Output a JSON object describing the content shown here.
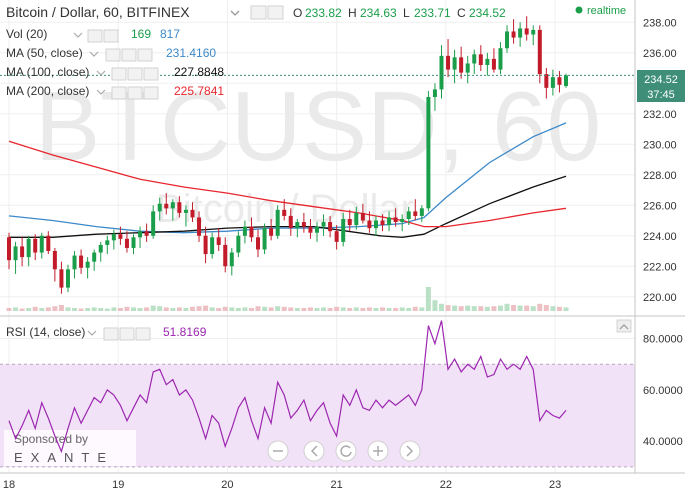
{
  "header": {
    "title": "Bitcoin / Dollar, 60, BITFINEX",
    "o_label": "O",
    "o_value": "233.82",
    "h_label": "H",
    "h_value": "234.63",
    "l_label": "L",
    "l_value": "233.71",
    "c_label": "C",
    "c_value": "234.52",
    "realtime": "realtime"
  },
  "watermark": {
    "symbol": "BTCUSD, 60",
    "name": "Bitcoin / Dollar"
  },
  "indicators": {
    "vol": {
      "label": "Vol (20)",
      "value1": "169",
      "value2": "817"
    },
    "ma50": {
      "label": "MA (50, close)",
      "value": "231.4160"
    },
    "ma100": {
      "label": "MA (100, close)",
      "value": "227.8848"
    },
    "ma200": {
      "label": "MA (200, close)",
      "value": "225.7841"
    },
    "rsi": {
      "label": "RSI (14, close)",
      "value": "51.8169"
    }
  },
  "price_axis": {
    "ticks": [
      "238.00",
      "236.00",
      "234.00",
      "232.00",
      "230.00",
      "228.00",
      "226.00",
      "224.00",
      "222.00",
      "220.00"
    ],
    "current_price": "234.52",
    "countdown": "37:45"
  },
  "rsi_axis": {
    "ticks": [
      "80.0000",
      "60.0000",
      "40.0000"
    ]
  },
  "time_axis": {
    "ticks": [
      "18",
      "19",
      "20",
      "21",
      "22",
      "23"
    ]
  },
  "sponsor": {
    "line1": "Sponsored by",
    "line2": "EXANTE"
  },
  "colors": {
    "up": "#1a9e4a",
    "down": "#c21b2a",
    "ma50": "#3d89c9",
    "ma100": "#111111",
    "ma200": "#e8262d",
    "rsi": "#9c27b0",
    "rsi_band": "#f2e2f7",
    "price_label": "#3f8f78",
    "vol_bar": "#b5d4ea"
  },
  "chart_data": [
    {
      "type": "candlestick",
      "title": "Bitcoin / Dollar, 60, BITFINEX",
      "x_range": [
        "17.95",
        "23.85"
      ],
      "ylim": [
        219.0,
        239.2
      ],
      "candles": [
        [
          18.0,
          223.9,
          224.2,
          221.8,
          222.4
        ],
        [
          18.06,
          222.4,
          223.6,
          221.5,
          223.3
        ],
        [
          18.12,
          223.3,
          223.9,
          222.0,
          222.6
        ],
        [
          18.18,
          222.6,
          224.0,
          222.0,
          223.8
        ],
        [
          18.24,
          223.8,
          224.1,
          222.4,
          222.9
        ],
        [
          18.3,
          222.9,
          224.2,
          222.5,
          224.0
        ],
        [
          18.36,
          224.0,
          224.3,
          222.8,
          223.0
        ],
        [
          18.42,
          223.0,
          223.2,
          221.0,
          221.8
        ],
        [
          18.48,
          221.8,
          222.3,
          220.2,
          220.6
        ],
        [
          18.54,
          220.6,
          222.1,
          220.3,
          221.8
        ],
        [
          18.6,
          221.8,
          223.0,
          221.2,
          222.7
        ],
        [
          18.66,
          222.7,
          223.1,
          221.5,
          221.9
        ],
        [
          18.72,
          221.9,
          222.6,
          221.2,
          222.3
        ],
        [
          18.78,
          222.3,
          223.1,
          221.7,
          222.9
        ],
        [
          18.84,
          222.9,
          223.6,
          222.3,
          223.4
        ],
        [
          18.9,
          223.4,
          224.0,
          222.8,
          223.7
        ],
        [
          18.96,
          223.7,
          224.4,
          223.1,
          224.1
        ],
        [
          19.02,
          224.1,
          224.6,
          223.4,
          223.8
        ],
        [
          19.08,
          223.8,
          224.3,
          222.9,
          223.2
        ],
        [
          19.14,
          223.2,
          224.1,
          222.8,
          223.9
        ],
        [
          19.2,
          223.9,
          224.6,
          223.2,
          224.3
        ],
        [
          19.26,
          224.3,
          224.8,
          223.6,
          224.0
        ],
        [
          19.32,
          224.0,
          226.0,
          223.8,
          225.6
        ],
        [
          19.38,
          225.6,
          226.5,
          225.0,
          226.1
        ],
        [
          19.44,
          226.1,
          226.8,
          225.4,
          225.8
        ],
        [
          19.5,
          225.8,
          226.4,
          225.0,
          226.2
        ],
        [
          19.56,
          226.2,
          226.6,
          225.2,
          225.5
        ],
        [
          19.62,
          225.5,
          226.0,
          224.6,
          225.7
        ],
        [
          19.68,
          225.7,
          226.2,
          224.9,
          225.2
        ],
        [
          19.74,
          225.2,
          225.6,
          223.6,
          224.0
        ],
        [
          19.8,
          224.0,
          224.6,
          222.2,
          222.8
        ],
        [
          19.86,
          222.8,
          224.2,
          222.5,
          223.9
        ],
        [
          19.92,
          223.9,
          224.5,
          223.0,
          223.4
        ],
        [
          19.98,
          223.4,
          223.9,
          221.6,
          222.0
        ],
        [
          20.04,
          222.0,
          223.2,
          221.4,
          222.9
        ],
        [
          20.1,
          222.9,
          224.3,
          222.6,
          224.0
        ],
        [
          20.16,
          224.0,
          225.0,
          223.5,
          224.6
        ],
        [
          20.22,
          224.6,
          225.2,
          223.6,
          223.9
        ],
        [
          20.28,
          223.9,
          224.4,
          222.6,
          223.1
        ],
        [
          20.34,
          223.1,
          224.8,
          222.8,
          224.5
        ],
        [
          20.4,
          224.5,
          225.1,
          223.7,
          224.0
        ],
        [
          20.46,
          224.0,
          226.0,
          223.8,
          225.7
        ],
        [
          20.52,
          225.7,
          226.4,
          225.0,
          225.3
        ],
        [
          20.58,
          225.3,
          225.8,
          224.0,
          224.5
        ],
        [
          20.64,
          224.5,
          225.1,
          223.9,
          224.9
        ],
        [
          20.7,
          224.9,
          225.5,
          224.2,
          224.6
        ],
        [
          20.76,
          224.6,
          225.1,
          223.8,
          224.2
        ],
        [
          20.82,
          224.2,
          224.9,
          223.6,
          224.6
        ],
        [
          20.88,
          224.6,
          225.4,
          224.0,
          224.9
        ],
        [
          20.94,
          224.9,
          225.3,
          223.9,
          224.3
        ],
        [
          21.0,
          224.3,
          224.7,
          223.1,
          223.6
        ],
        [
          21.06,
          223.6,
          225.5,
          223.3,
          225.1
        ],
        [
          21.12,
          225.1,
          225.7,
          224.3,
          224.7
        ],
        [
          21.18,
          224.7,
          225.9,
          224.4,
          225.5
        ],
        [
          21.24,
          225.5,
          226.1,
          224.8,
          225.0
        ],
        [
          21.3,
          225.0,
          225.6,
          224.2,
          224.5
        ],
        [
          21.36,
          224.5,
          225.3,
          224.0,
          225.0
        ],
        [
          21.42,
          225.0,
          225.4,
          224.3,
          224.7
        ],
        [
          21.48,
          224.7,
          225.6,
          224.3,
          225.2
        ],
        [
          21.54,
          225.2,
          225.8,
          224.6,
          224.9
        ],
        [
          21.6,
          224.9,
          225.4,
          224.3,
          225.1
        ],
        [
          21.66,
          225.1,
          225.9,
          224.7,
          225.6
        ],
        [
          21.72,
          225.6,
          226.4,
          225.0,
          225.3
        ],
        [
          21.78,
          225.3,
          226.0,
          224.9,
          225.8
        ],
        [
          21.84,
          225.8,
          233.5,
          225.6,
          233.1
        ],
        [
          21.9,
          233.1,
          234.0,
          232.2,
          233.6
        ],
        [
          21.96,
          233.6,
          236.5,
          233.0,
          235.8
        ],
        [
          22.02,
          235.8,
          236.9,
          234.4,
          234.9
        ],
        [
          22.08,
          234.9,
          236.2,
          234.0,
          235.7
        ],
        [
          22.14,
          235.7,
          236.4,
          234.3,
          234.7
        ],
        [
          22.2,
          234.7,
          235.8,
          234.0,
          235.3
        ],
        [
          22.26,
          235.3,
          236.2,
          234.6,
          235.9
        ],
        [
          22.32,
          235.9,
          236.5,
          234.8,
          235.2
        ],
        [
          22.38,
          235.2,
          236.0,
          234.5,
          235.6
        ],
        [
          22.44,
          235.6,
          236.3,
          234.7,
          234.9
        ],
        [
          22.5,
          234.9,
          236.7,
          234.6,
          236.3
        ],
        [
          22.56,
          236.3,
          237.8,
          236.0,
          237.4
        ],
        [
          22.62,
          237.4,
          238.2,
          236.6,
          237.0
        ],
        [
          22.68,
          237.0,
          238.0,
          236.4,
          237.6
        ],
        [
          22.74,
          237.6,
          238.4,
          236.8,
          237.2
        ],
        [
          22.8,
          237.2,
          237.8,
          236.5,
          237.5
        ],
        [
          22.86,
          237.5,
          237.8,
          234.0,
          234.6
        ],
        [
          22.92,
          234.6,
          235.0,
          233.0,
          233.7
        ],
        [
          22.98,
          233.7,
          234.9,
          233.2,
          234.4
        ],
        [
          23.04,
          234.4,
          234.8,
          233.4,
          233.9
        ],
        [
          23.1,
          233.82,
          234.63,
          233.71,
          234.52
        ]
      ],
      "volume": [
        5,
        6,
        4,
        5,
        7,
        5,
        6,
        8,
        10,
        6,
        5,
        4,
        5,
        6,
        5,
        4,
        6,
        5,
        7,
        6,
        5,
        6,
        9,
        8,
        6,
        5,
        6,
        5,
        7,
        8,
        9,
        6,
        5,
        7,
        6,
        5,
        6,
        5,
        8,
        7,
        6,
        8,
        7,
        6,
        5,
        5,
        6,
        5,
        6,
        5,
        7,
        6,
        5,
        6,
        5,
        6,
        5,
        6,
        5,
        5,
        6,
        5,
        7,
        6,
        40,
        18,
        12,
        10,
        9,
        8,
        9,
        8,
        8,
        7,
        8,
        9,
        12,
        10,
        9,
        9,
        8,
        12,
        10,
        8,
        7,
        6
      ],
      "ma_series": [
        {
          "name": "MA (50, close)",
          "x": [
            18.0,
            18.4,
            18.8,
            19.2,
            19.6,
            20.0,
            20.4,
            20.8,
            21.2,
            21.6,
            21.8,
            22.0,
            22.4,
            22.8,
            23.1
          ],
          "values": [
            225.3,
            225.0,
            224.6,
            224.3,
            224.2,
            224.3,
            224.5,
            224.5,
            224.6,
            224.8,
            225.2,
            226.5,
            228.8,
            230.5,
            231.4
          ]
        },
        {
          "name": "MA (100, close)",
          "x": [
            18.0,
            18.4,
            18.8,
            19.2,
            19.6,
            20.0,
            20.4,
            20.8,
            21.0,
            21.4,
            21.6,
            21.8,
            22.0,
            22.4,
            22.8,
            23.1
          ],
          "values": [
            223.9,
            223.9,
            224.1,
            224.2,
            224.3,
            224.5,
            224.6,
            224.6,
            224.4,
            224.0,
            223.9,
            224.1,
            224.8,
            226.1,
            227.2,
            227.9
          ]
        },
        {
          "name": "MA (200, close)",
          "x": [
            18.0,
            18.4,
            18.8,
            19.2,
            19.6,
            20.0,
            20.4,
            20.8,
            21.2,
            21.6,
            21.8,
            22.0,
            22.4,
            22.8,
            23.1
          ],
          "values": [
            230.2,
            229.3,
            228.5,
            227.7,
            227.2,
            226.8,
            226.3,
            225.9,
            225.5,
            225.0,
            224.6,
            224.6,
            225.0,
            225.5,
            225.8
          ]
        }
      ]
    },
    {
      "type": "line",
      "title": "RSI (14, close)",
      "ylim": [
        28.0,
        88.0
      ],
      "band": [
        30,
        70
      ],
      "series": [
        {
          "name": "RSI (14, close)",
          "x": [
            18.0,
            18.06,
            18.12,
            18.18,
            18.24,
            18.3,
            18.36,
            18.42,
            18.48,
            18.54,
            18.6,
            18.66,
            18.72,
            18.78,
            18.84,
            18.9,
            18.96,
            19.02,
            19.08,
            19.14,
            19.2,
            19.26,
            19.32,
            19.38,
            19.44,
            19.5,
            19.56,
            19.62,
            19.68,
            19.74,
            19.8,
            19.86,
            19.92,
            19.98,
            20.04,
            20.1,
            20.16,
            20.22,
            20.28,
            20.34,
            20.4,
            20.46,
            20.52,
            20.58,
            20.64,
            20.7,
            20.76,
            20.82,
            20.88,
            20.94,
            21.0,
            21.06,
            21.12,
            21.18,
            21.24,
            21.3,
            21.36,
            21.42,
            21.48,
            21.54,
            21.6,
            21.66,
            21.72,
            21.78,
            21.84,
            21.9,
            21.96,
            22.02,
            22.08,
            22.14,
            22.2,
            22.26,
            22.32,
            22.38,
            22.44,
            22.5,
            22.56,
            22.62,
            22.68,
            22.74,
            22.8,
            22.86,
            22.92,
            22.98,
            23.04,
            23.1
          ],
          "values": [
            48,
            41,
            46,
            52,
            45,
            55,
            49,
            42,
            36,
            45,
            53,
            47,
            52,
            57,
            55,
            60,
            58,
            54,
            48,
            53,
            58,
            55,
            67,
            68,
            62,
            64,
            58,
            60,
            56,
            49,
            41,
            50,
            47,
            38,
            45,
            53,
            57,
            48,
            41,
            53,
            47,
            63,
            58,
            49,
            52,
            56,
            48,
            52,
            55,
            47,
            42,
            58,
            54,
            60,
            53,
            52,
            56,
            53,
            56,
            54,
            56,
            58,
            54,
            60,
            85,
            78,
            87,
            68,
            72,
            67,
            70,
            68,
            73,
            65,
            66,
            72,
            68,
            70,
            68,
            73,
            68,
            48,
            52,
            50,
            49,
            52
          ]
        }
      ]
    }
  ]
}
